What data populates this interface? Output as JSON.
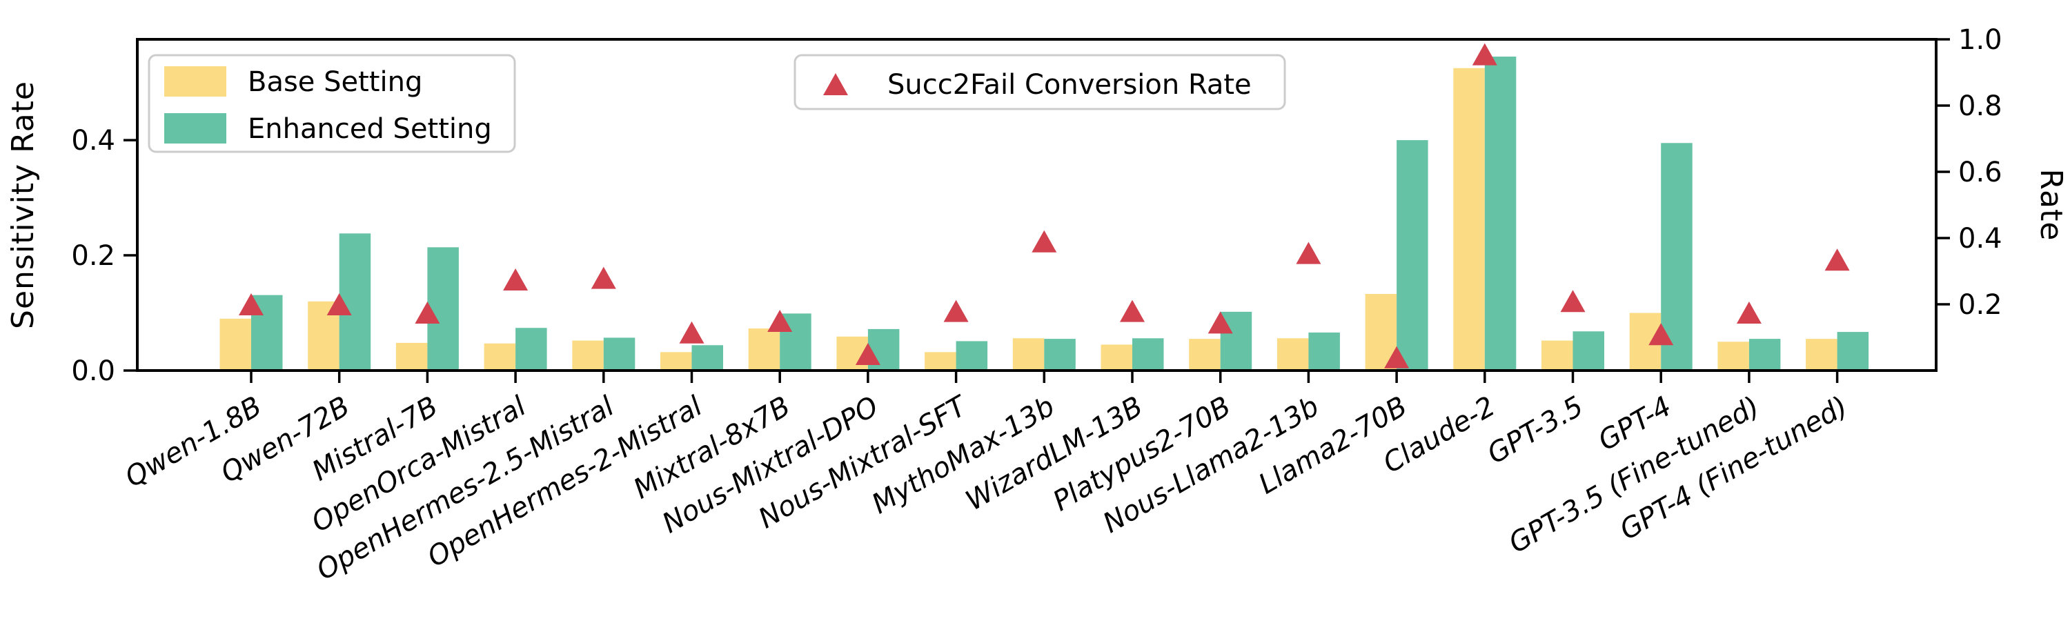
{
  "figure": {
    "background": "#FFFFFF",
    "frame_color": "#000000"
  },
  "chart_data": {
    "type": "bar",
    "title": "",
    "categories": [
      "Qwen-1.8B",
      "Qwen-72B",
      "Mistral-7B",
      "OpenOrca-Mistral",
      "OpenHermes-2.5-Mistral",
      "OpenHermes-2-Mistral",
      "Mixtral-8x7B",
      "Nous-Mixtral-DPO",
      "Nous-Mixtral-SFT",
      "MythoMax-13b",
      "WizardLM-13B",
      "Platypus2-70B",
      "Nous-Llama2-13b",
      "Llama2-70B",
      "Claude-2",
      "GPT-3.5",
      "GPT-4",
      "GPT-3.5 (Fine-tuned)",
      "GPT-4 (Fine-tuned)"
    ],
    "series": [
      {
        "name": "Base Setting",
        "axis": "left",
        "color": "#FBDB84",
        "values": [
          0.09,
          0.12,
          0.048,
          0.047,
          0.052,
          0.032,
          0.073,
          0.059,
          0.032,
          0.056,
          0.045,
          0.055,
          0.056,
          0.133,
          0.525,
          0.052,
          0.1,
          0.05,
          0.055
        ]
      },
      {
        "name": "Enhanced Setting",
        "axis": "left",
        "color": "#66C2A5",
        "values": [
          0.131,
          0.238,
          0.214,
          0.074,
          0.057,
          0.044,
          0.099,
          0.072,
          0.051,
          0.055,
          0.056,
          0.102,
          0.066,
          0.4,
          0.545,
          0.068,
          0.395,
          0.055,
          0.067
        ]
      }
    ],
    "scatter_series": {
      "name": "Succ2Fail Conversion Rate",
      "axis": "right",
      "color": "#D2414E",
      "marker": "triangle-up",
      "values": [
        0.2,
        0.2,
        0.175,
        0.275,
        0.28,
        0.115,
        0.15,
        0.05,
        0.18,
        0.39,
        0.18,
        0.145,
        0.355,
        0.04,
        0.955,
        0.21,
        0.11,
        0.175,
        0.335
      ]
    },
    "left_axis": {
      "label": "Sensitivity Rate",
      "ticks": [
        0.0,
        0.2,
        0.4
      ],
      "tick_labels": [
        "0.0",
        "0.2",
        "0.4"
      ],
      "range": [
        0,
        0.575
      ]
    },
    "right_axis": {
      "label": "Rate",
      "ticks": [
        0.2,
        0.4,
        0.6,
        0.8,
        1.0
      ],
      "tick_labels": [
        "0.2",
        "0.4",
        "0.6",
        "0.8",
        "1.0"
      ],
      "range": [
        0,
        1.0
      ]
    },
    "x_axis": {
      "tick_label_rotation_deg": 30,
      "tick_label_style": "italic"
    },
    "legend_bars": {
      "entries": [
        "Base Setting",
        "Enhanced Setting"
      ]
    },
    "legend_scatter": {
      "entries": [
        "Succ2Fail Conversion Rate"
      ]
    },
    "grid": false,
    "legend_positions": [
      "upper-left",
      "upper-center"
    ]
  }
}
